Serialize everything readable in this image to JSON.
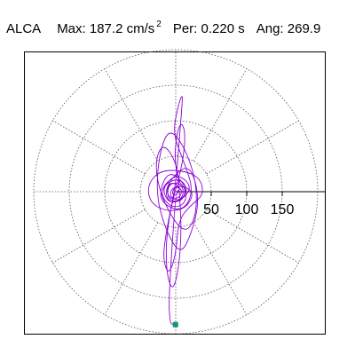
{
  "header": {
    "station": "ALCA",
    "max_label": "Max:",
    "max_value": "187.2",
    "max_unit": "cm/s",
    "max_unit_exp": "2",
    "per_label": "Per:",
    "per_value": "0.220 s",
    "ang_label": "Ang:",
    "ang_value": "269.9"
  },
  "chart_data": {
    "type": "polar-orbit",
    "title": "",
    "radial_ticks": [
      50,
      100,
      150
    ],
    "radial_tick_labels": [
      "50",
      "100",
      "150"
    ],
    "radial_max": 200,
    "angular_divisions_deg": 30,
    "grid": true,
    "peak": {
      "magnitude": 187.2,
      "angle_deg": 269.9
    },
    "orbit": [
      [
        0,
        0
      ],
      [
        10,
        3
      ],
      [
        -8,
        16
      ],
      [
        -14,
        -6
      ],
      [
        6,
        -14
      ],
      [
        18,
        4
      ],
      [
        4,
        20
      ],
      [
        -20,
        8
      ],
      [
        -10,
        -18
      ],
      [
        14,
        -8
      ],
      [
        22,
        10
      ],
      [
        0,
        26
      ],
      [
        -24,
        0
      ],
      [
        -6,
        -24
      ],
      [
        16,
        -16
      ],
      [
        12,
        14
      ],
      [
        -12,
        30
      ],
      [
        -26,
        -12
      ],
      [
        8,
        -30
      ],
      [
        26,
        0
      ],
      [
        10,
        46
      ],
      [
        -4,
        82
      ],
      [
        3,
        120
      ],
      [
        10,
        140
      ],
      [
        8,
        110
      ],
      [
        4,
        60
      ],
      [
        0,
        10
      ],
      [
        -10,
        -40
      ],
      [
        -14,
        -80
      ],
      [
        -12,
        -120
      ],
      [
        -4,
        -140
      ],
      [
        4,
        -110
      ],
      [
        8,
        -60
      ],
      [
        6,
        -10
      ],
      [
        2,
        40
      ],
      [
        -18,
        70
      ],
      [
        -30,
        40
      ],
      [
        -20,
        -10
      ],
      [
        10,
        -60
      ],
      [
        28,
        -40
      ],
      [
        30,
        10
      ],
      [
        14,
        60
      ],
      [
        -8,
        90
      ],
      [
        -22,
        60
      ],
      [
        -28,
        0
      ],
      [
        -16,
        -50
      ],
      [
        6,
        -90
      ],
      [
        22,
        -60
      ],
      [
        34,
        -10
      ],
      [
        20,
        40
      ],
      [
        -6,
        20
      ],
      [
        -16,
        -4
      ],
      [
        -4,
        -18
      ],
      [
        12,
        -6
      ],
      [
        8,
        12
      ],
      [
        -10,
        12
      ],
      [
        -12,
        -10
      ],
      [
        6,
        -16
      ],
      [
        16,
        2
      ],
      [
        2,
        16
      ],
      [
        -2,
        60
      ],
      [
        6,
        100
      ],
      [
        14,
        85
      ],
      [
        10,
        40
      ],
      [
        -4,
        -10
      ],
      [
        -14,
        -60
      ],
      [
        -18,
        -95
      ],
      [
        -10,
        -118
      ],
      [
        0,
        -90
      ],
      [
        4,
        -40
      ],
      [
        20,
        -20
      ],
      [
        40,
        -4
      ],
      [
        34,
        20
      ],
      [
        10,
        30
      ],
      [
        -22,
        30
      ],
      [
        -40,
        10
      ],
      [
        -36,
        -16
      ],
      [
        -12,
        -28
      ],
      [
        14,
        -24
      ],
      [
        26,
        -2
      ],
      [
        12,
        8
      ],
      [
        -6,
        6
      ],
      [
        -8,
        -8
      ],
      [
        4,
        -10
      ],
      [
        10,
        2
      ],
      [
        0,
        8
      ],
      [
        -6,
        -2
      ],
      [
        0,
        -6
      ],
      [
        4,
        0
      ],
      [
        0,
        0
      ],
      [
        -10,
        -150
      ],
      [
        -8,
        -185
      ],
      [
        -4,
        -187.2
      ]
    ]
  },
  "colors": {
    "orbit": "#8a00d4",
    "grid": "#555555",
    "marker": "#0f9a6a",
    "axis": "#000000"
  }
}
